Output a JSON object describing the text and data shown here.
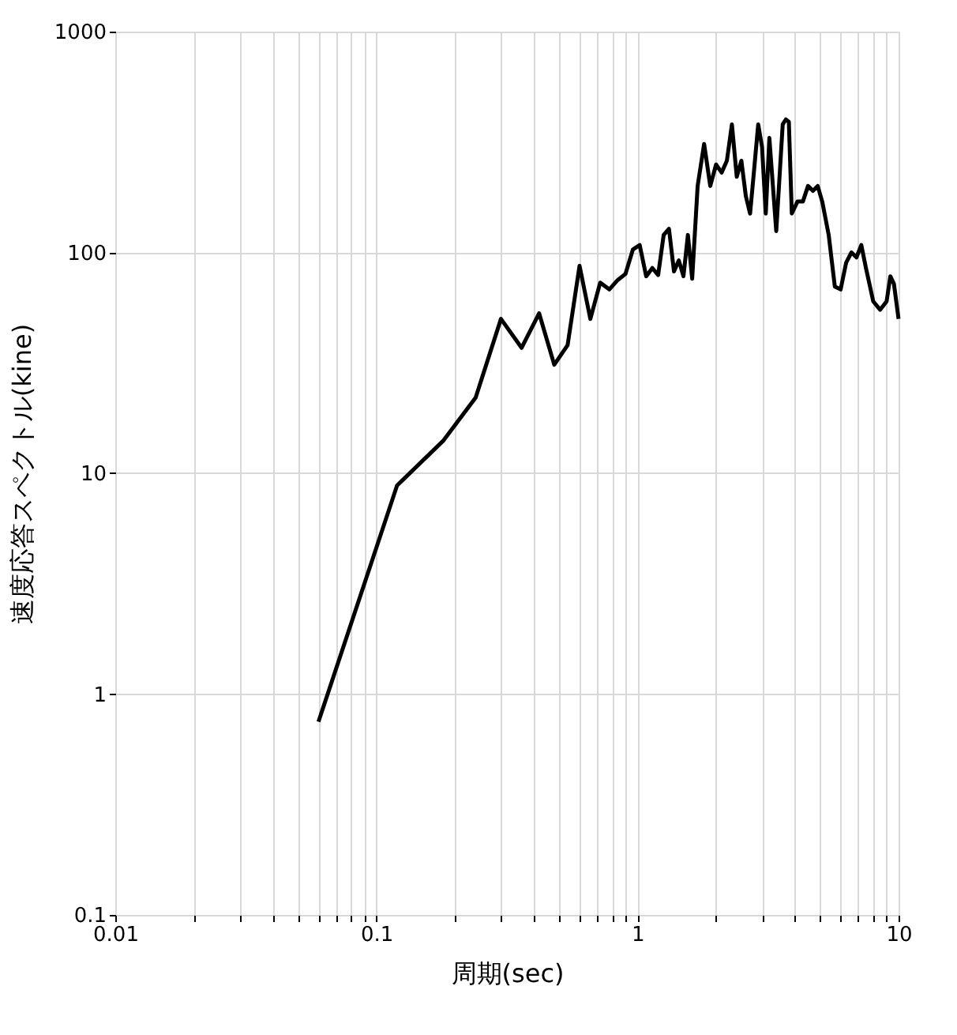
{
  "chart_data": {
    "type": "line",
    "xlabel": "周期(sec)",
    "ylabel": "速度応答スペクトル(kine)",
    "log": "xy",
    "grid": true,
    "legend": false,
    "marker": "none",
    "line_style": "solid",
    "xlim": [
      0.01,
      10
    ],
    "ylim": [
      0.1,
      1000
    ],
    "xticks": [
      0.01,
      {
        "value": 0.02,
        "label": null
      },
      {
        "value": 0.03,
        "label": null
      },
      {
        "value": 0.04,
        "label": null
      },
      {
        "value": 0.05,
        "label": null
      },
      {
        "value": 0.06,
        "label": null
      },
      {
        "value": 0.07,
        "label": null
      },
      {
        "value": 0.08,
        "label": null
      },
      {
        "value": 0.09,
        "label": null
      },
      0.1,
      {
        "value": 0.2,
        "label": null
      },
      {
        "value": 0.3,
        "label": null
      },
      {
        "value": 0.4,
        "label": null
      },
      {
        "value": 0.5,
        "label": null
      },
      {
        "value": 0.6,
        "label": null
      },
      {
        "value": 0.7,
        "label": null
      },
      {
        "value": 0.8,
        "label": null
      },
      {
        "value": 0.9,
        "label": null
      },
      1,
      {
        "value": 2,
        "label": null
      },
      {
        "value": 3,
        "label": null
      },
      {
        "value": 4,
        "label": null
      },
      {
        "value": 5,
        "label": null
      },
      {
        "value": 6,
        "label": null
      },
      {
        "value": 7,
        "label": null
      },
      {
        "value": 8,
        "label": null
      },
      {
        "value": 9,
        "label": null
      },
      10
    ],
    "yticks": [
      0.1,
      1,
      10,
      100,
      1000
    ],
    "x": [
      0.06,
      0.12,
      0.18,
      0.24,
      0.3,
      0.36,
      0.42,
      0.48,
      0.54,
      0.6,
      0.66,
      0.72,
      0.78,
      0.84,
      0.9,
      0.96,
      1.02,
      1.08,
      1.14,
      1.2,
      1.26,
      1.32,
      1.38,
      1.44,
      1.5,
      1.56,
      1.62,
      1.7,
      1.8,
      1.9,
      2.0,
      2.1,
      2.2,
      2.3,
      2.4,
      2.5,
      2.6,
      2.7,
      2.8,
      2.9,
      3.0,
      3.1,
      3.2,
      3.4,
      3.6,
      3.7,
      3.8,
      3.9,
      4.1,
      4.3,
      4.5,
      4.7,
      4.9,
      5.1,
      5.4,
      5.7,
      6.0,
      6.3,
      6.6,
      6.9,
      7.2,
      7.5,
      8.0,
      8.5,
      9.0,
      9.3,
      9.6,
      10
    ],
    "series": [
      {
        "color": "#000000",
        "values": [
          0.75,
          8.8,
          14,
          22,
          50,
          37,
          53,
          31,
          38,
          87,
          50,
          73,
          68,
          75,
          80,
          103,
          108,
          78,
          85,
          79,
          120,
          128,
          82,
          92,
          78,
          120,
          76,
          200,
          310,
          200,
          250,
          230,
          260,
          380,
          220,
          260,
          180,
          150,
          240,
          380,
          300,
          150,
          330,
          125,
          380,
          400,
          390,
          150,
          170,
          170,
          200,
          190,
          200,
          170,
          120,
          70,
          68,
          90,
          100,
          95,
          108,
          85,
          60,
          55,
          60,
          78,
          72,
          50
        ]
      }
    ]
  }
}
